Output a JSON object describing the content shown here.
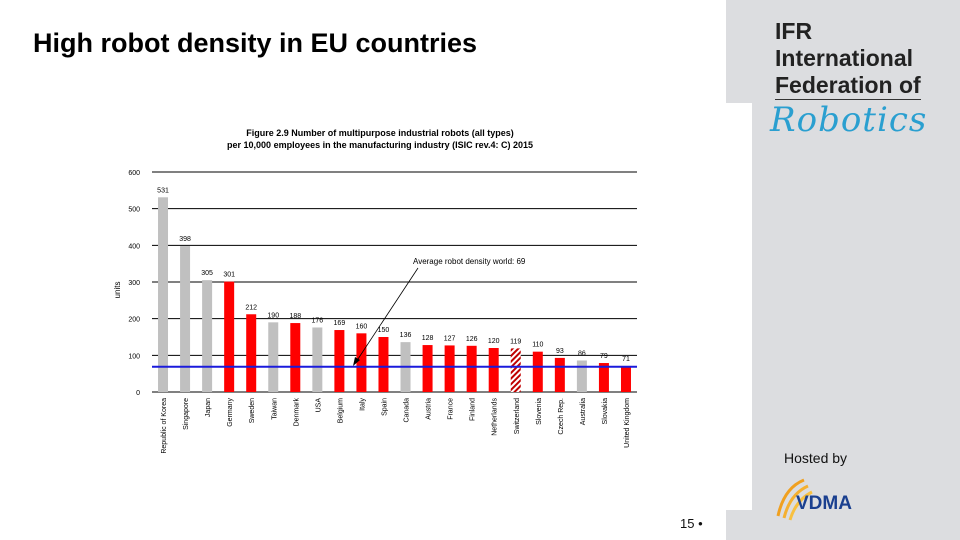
{
  "slide": {
    "title": "High robot density in EU countries",
    "page_number": "15 •",
    "hosted_by": "Hosted by",
    "logo": {
      "line1": "IFR",
      "line2": "International",
      "line3": "Federation of",
      "script": "Robotics"
    },
    "sponsor_logo": "VDMA"
  },
  "chart_data": {
    "type": "bar",
    "title": "Figure 2.9 Number of multipurpose industrial robots (all types)",
    "subtitle": "per 10,000 employees in the manufacturing industry (ISIC rev.4: C) 2015",
    "ylabel": "units",
    "xlabel": "",
    "ylim": [
      0,
      600
    ],
    "yticks": [
      0,
      100,
      200,
      300,
      400,
      500,
      600
    ],
    "grid": true,
    "categories": [
      "Republic of Korea",
      "Singapore",
      "Japan",
      "Germany",
      "Sweden",
      "Taiwan",
      "Denmark",
      "USA",
      "Belgium",
      "Italy",
      "Spain",
      "Canada",
      "Austria",
      "France",
      "Finland",
      "Netherlands",
      "Switzerland",
      "Slovenia",
      "Czech Rep.",
      "Australia",
      "Slovakia",
      "United Kingdom"
    ],
    "values": [
      531,
      398,
      305,
      301,
      212,
      190,
      188,
      176,
      169,
      160,
      150,
      136,
      128,
      127,
      126,
      120,
      119,
      110,
      93,
      86,
      79,
      71
    ],
    "bar_style": [
      "non-eu",
      "non-eu",
      "non-eu",
      "eu",
      "eu",
      "non-eu",
      "eu",
      "non-eu",
      "eu",
      "eu",
      "eu",
      "non-eu",
      "eu",
      "eu",
      "eu",
      "eu",
      "hatched",
      "eu",
      "eu",
      "non-eu",
      "eu",
      "eu"
    ],
    "colors": {
      "eu": "#ff0000",
      "non-eu": "#c0c0c0",
      "average_line": "#1a1adc"
    },
    "reference_line": {
      "value": 69,
      "label": "Average robot density world: 69"
    }
  }
}
